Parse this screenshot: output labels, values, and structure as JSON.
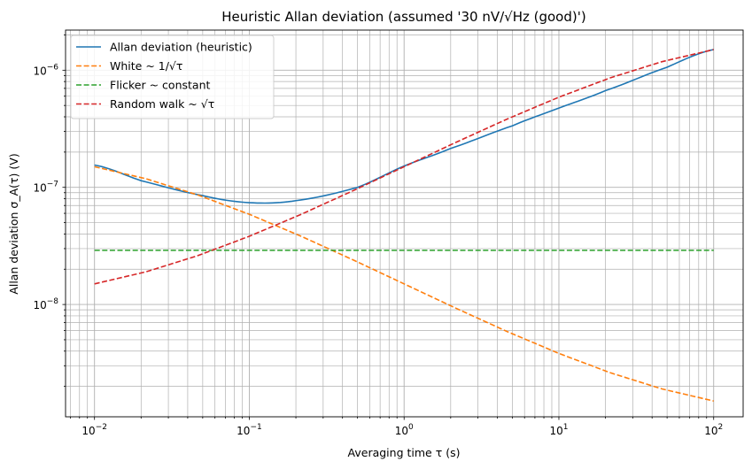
{
  "chart_data": {
    "type": "line",
    "title": "Heuristic Allan deviation (assumed '30 nV/√Hz (good)')",
    "xlabel": "Averaging time τ (s)",
    "ylabel": "Allan deviation σ_A(τ) (V)",
    "xscale": "log",
    "yscale": "log",
    "xlim": [
      0.0065,
      155
    ],
    "ylim": [
      1.1e-09,
      2.2e-06
    ],
    "grid": true,
    "legend_position": "top-left",
    "x_ticks": [
      {
        "value": 0.01,
        "base": "10",
        "exp": "−2"
      },
      {
        "value": 0.1,
        "base": "10",
        "exp": "−1"
      },
      {
        "value": 1,
        "base": "10",
        "exp": "0"
      },
      {
        "value": 10,
        "base": "10",
        "exp": "1"
      },
      {
        "value": 100,
        "base": "10",
        "exp": "2"
      }
    ],
    "y_ticks": [
      {
        "value": 1e-08,
        "base": "10",
        "exp": "−8"
      },
      {
        "value": 1e-07,
        "base": "10",
        "exp": "−7"
      },
      {
        "value": 1e-06,
        "base": "10",
        "exp": "−6"
      }
    ],
    "series": [
      {
        "name": "Allan deviation (heuristic)",
        "color": "#1f77b4",
        "dash": "solid",
        "x": [
          0.01,
          0.02,
          0.05,
          0.1,
          0.2,
          0.5,
          1,
          2,
          5,
          10,
          20,
          50,
          100
        ],
        "y": [
          1.55e-07,
          1.14e-07,
          8.5e-08,
          7.4e-08,
          7.7e-08,
          1e-07,
          1.52e-07,
          2.15e-07,
          3.35e-07,
          4.75e-07,
          6.7e-07,
          1.06e-06,
          1.5e-06
        ]
      },
      {
        "name": "White ~ 1/√τ",
        "color": "#ff7f0e",
        "dash": "dashed",
        "x": [
          0.01,
          100
        ],
        "y": [
          1.5e-07,
          1.5e-09
        ]
      },
      {
        "name": "Flicker ~ constant",
        "color": "#2ca02c",
        "dash": "dashed",
        "x": [
          0.01,
          100
        ],
        "y": [
          2.9e-08,
          2.9e-08
        ]
      },
      {
        "name": "Random walk ~ √τ",
        "color": "#d62728",
        "dash": "dashed",
        "x": [
          0.01,
          100
        ],
        "y": [
          1.5e-08,
          1.5e-06
        ]
      }
    ]
  }
}
